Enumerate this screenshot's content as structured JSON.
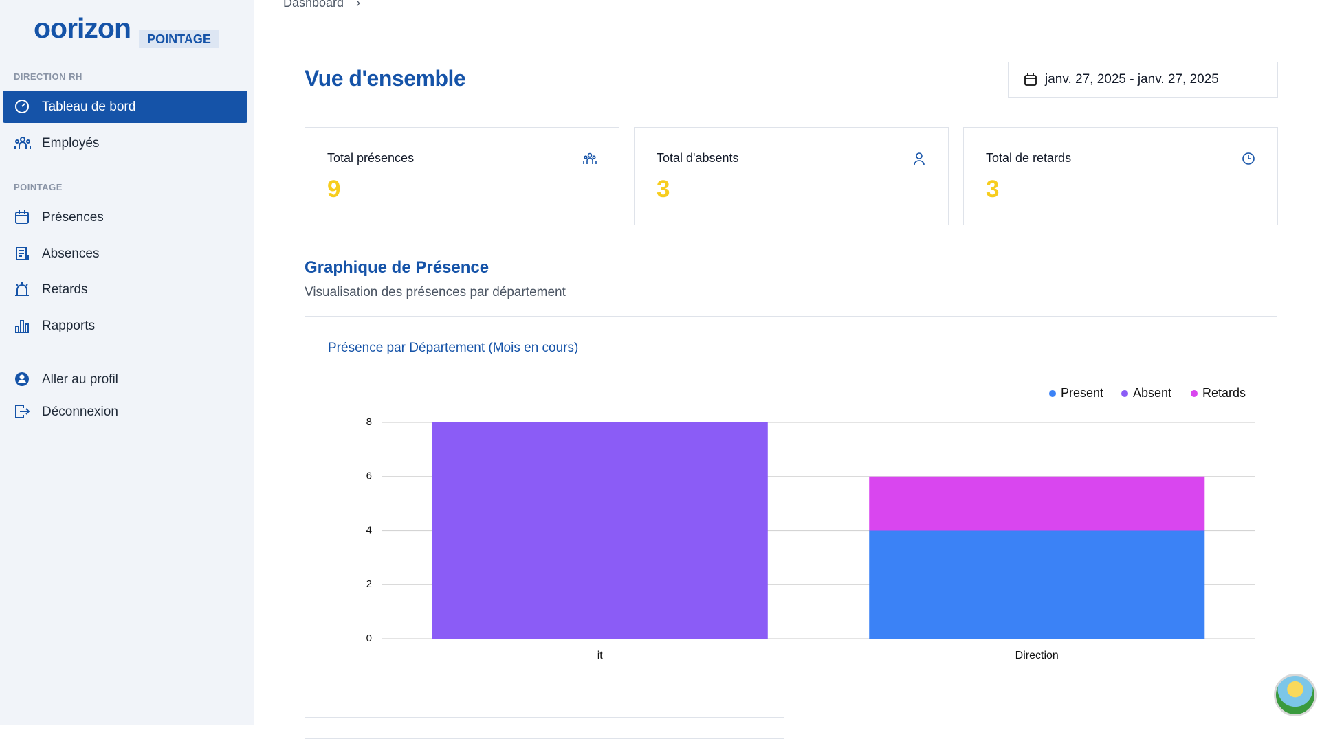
{
  "logo": {
    "wordmark": "oorizon",
    "badge": "POINTAGE"
  },
  "sidebar": {
    "sections": [
      {
        "title": "DIRECTION RH",
        "items": [
          "Tableau de bord",
          "Employés"
        ]
      },
      {
        "title": "POINTAGE",
        "items": [
          "Présences",
          "Absences",
          "Retards",
          "Rapports"
        ]
      }
    ],
    "footer_items": [
      "Aller au profil",
      "Déconnexion"
    ]
  },
  "breadcrumb": "Dashboard",
  "header": {
    "title": "Vue d'ensemble",
    "date_range": "janv. 27, 2025 - janv. 27, 2025"
  },
  "cards": [
    {
      "label": "Total présences",
      "value": 9
    },
    {
      "label": "Total d'absents",
      "value": 3
    },
    {
      "label": "Total de retards",
      "value": 3
    }
  ],
  "chart_section": {
    "title": "Graphique de Présence",
    "subtitle": "Visualisation des présences par département"
  },
  "chart_data": {
    "type": "stacked_bar",
    "title": "Présence par Département (Mois en cours)",
    "categories": [
      "it",
      "Direction"
    ],
    "series": [
      {
        "name": "Present",
        "color": "#3b82f6",
        "values": [
          0,
          4
        ]
      },
      {
        "name": "Absent",
        "color": "#8b5cf6",
        "values": [
          8,
          0
        ]
      },
      {
        "name": "Retards",
        "color": "#d946ef",
        "values": [
          0,
          2
        ]
      }
    ],
    "ylim": [
      0,
      8
    ],
    "yticks": [
      0,
      2,
      4,
      6,
      8
    ],
    "grid": true,
    "legend": "top-right"
  }
}
